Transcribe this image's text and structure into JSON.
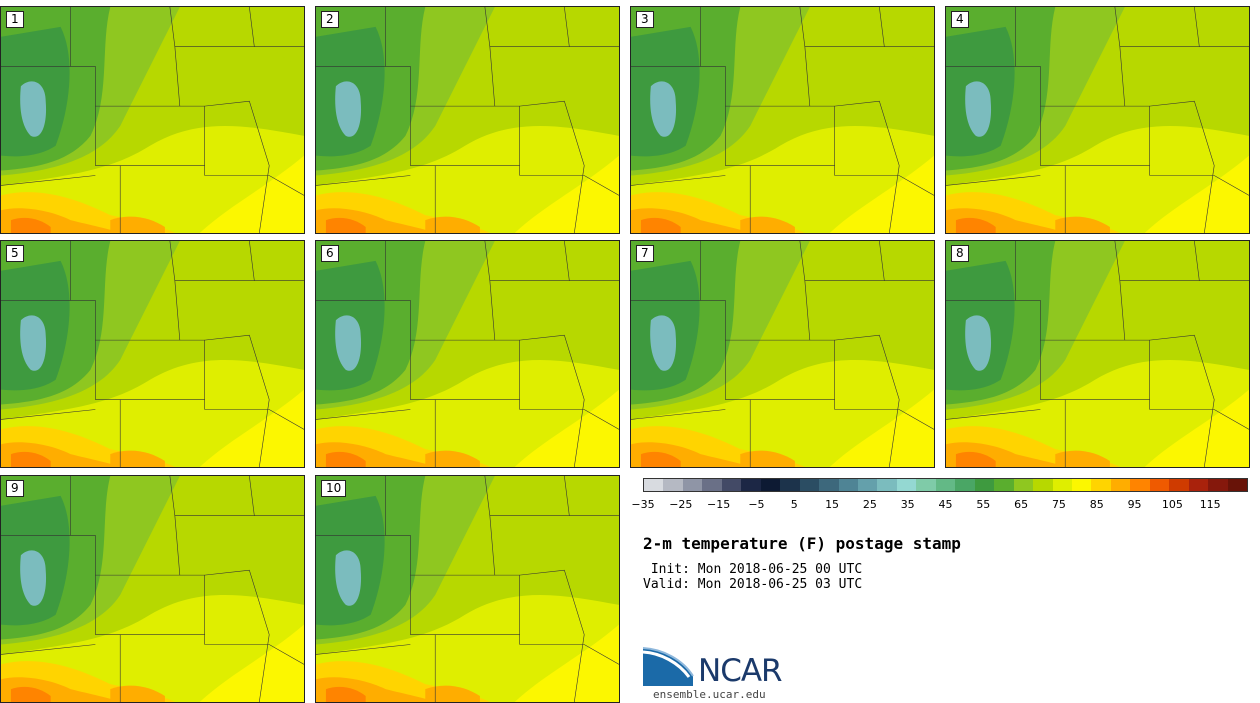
{
  "panels": [
    {
      "label": "1"
    },
    {
      "label": "2"
    },
    {
      "label": "3"
    },
    {
      "label": "4"
    },
    {
      "label": "5"
    },
    {
      "label": "6"
    },
    {
      "label": "7"
    },
    {
      "label": "8"
    },
    {
      "label": "9"
    },
    {
      "label": "10"
    }
  ],
  "colorbar": {
    "colors": [
      "#d8dbe0",
      "#b5b9c3",
      "#8f95a6",
      "#6a7087",
      "#434a66",
      "#1c2745",
      "#0d1a33",
      "#1c334b",
      "#2b4d63",
      "#3d687c",
      "#4f8495",
      "#64a0ab",
      "#7bbcbe",
      "#94d8d2",
      "#7fcba8",
      "#63b986",
      "#4aa665",
      "#3e9a3f",
      "#5aae2e",
      "#8fc720",
      "#b7d800",
      "#dfee00",
      "#fcf700",
      "#ffd400",
      "#ffad00",
      "#ff8400",
      "#ef5a00",
      "#cf3b00",
      "#a9220c",
      "#85180c",
      "#681308"
    ],
    "tick_labels": [
      "−35",
      "−25",
      "−15",
      "−5",
      "5",
      "15",
      "25",
      "35",
      "45",
      "55",
      "65",
      "75",
      "85",
      "95",
      "105",
      "115"
    ],
    "range": [
      -35,
      125
    ]
  },
  "title": "2-m temperature (F) postage stamp",
  "init_line": " Init: Mon 2018-06-25 00 UTC",
  "valid_line": "Valid: Mon 2018-06-25 03 UTC",
  "logo": {
    "text": "NCAR",
    "site": "ensemble.ucar.edu"
  }
}
